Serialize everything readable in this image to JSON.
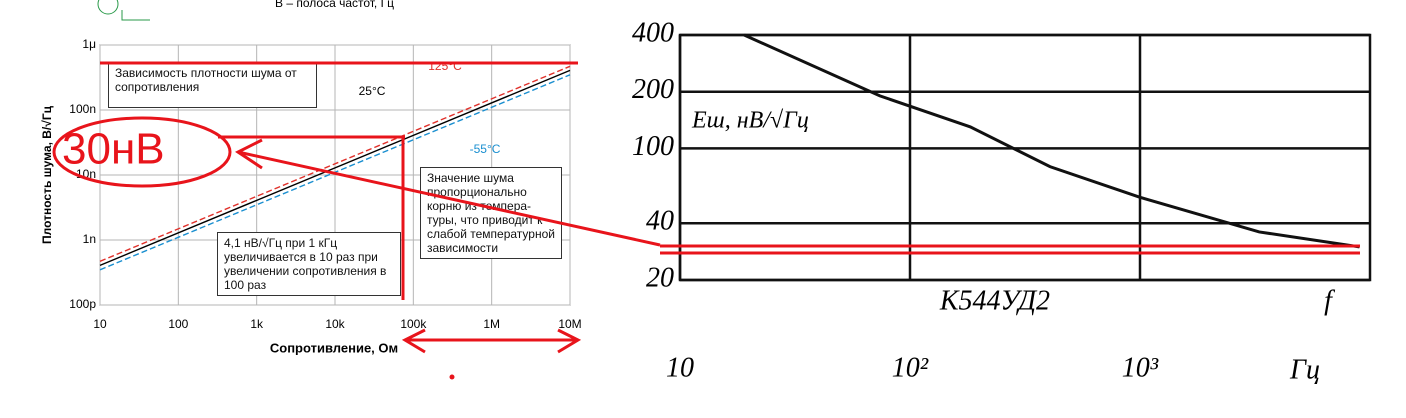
{
  "header_note": "B – полоса частот, Гц",
  "red_note": "30нВ",
  "chart_data": [
    {
      "type": "line",
      "title": "Зависимость плотности шума от сопротивления",
      "x_label": "Сопротивление, Ом",
      "y_label": "Плотность шума, В/√Гц",
      "xscale": "log",
      "yscale": "log",
      "grid": true,
      "xlim": [
        10,
        10000000
      ],
      "xticks": [
        10,
        100,
        {
          "value": 1000,
          "label": "1k"
        },
        {
          "value": 10000,
          "label": "10k"
        },
        {
          "value": 100000,
          "label": "100k"
        },
        {
          "value": 1000000,
          "label": "1M"
        },
        {
          "value": 10000000,
          "label": "10M"
        }
      ],
      "ylim": [
        1e-10,
        1e-06
      ],
      "yticks": [
        {
          "value": 1e-10,
          "label": "100p"
        },
        {
          "value": 1e-09,
          "label": "1n"
        },
        {
          "value": 1e-08,
          "label": "10n"
        },
        {
          "value": 1e-07,
          "label": "100n"
        },
        {
          "value": 1e-06,
          "label": "1μ"
        }
      ],
      "x": [
        10,
        10000000
      ],
      "series": [
        {
          "name": "125°C",
          "color": "#e0312b",
          "dash": true,
          "values": [
            4.7e-10,
            4.7e-07
          ]
        },
        {
          "name": "25°C",
          "color": "#000000",
          "dash": false,
          "values": [
            4.07e-10,
            4.07e-07
          ]
        },
        {
          "name": "-55°C",
          "color": "#1a8fd0",
          "dash": true,
          "values": [
            3.48e-10,
            3.48e-07
          ]
        }
      ],
      "annotations": [
        "Значение шума пропорционально корню из темпера-туры, что приводит к слабой температурной зависимости",
        "4,1 нВ/√Гц при 1 кГц увеличивается в 10 раз при увеличении сопротивления в 100 раз"
      ]
    },
    {
      "type": "line",
      "x_label": "Гц",
      "y_label": "Eш, нВ/√Гц",
      "xscale": "log",
      "yscale": "log",
      "grid": true,
      "xlim": [
        10,
        10000
      ],
      "xticks": [
        10,
        {
          "value": 100,
          "label": "10²"
        },
        {
          "value": 1000,
          "label": "10³"
        }
      ],
      "ylim": [
        20,
        400
      ],
      "yticks": [
        20,
        40,
        100,
        200,
        400
      ],
      "x": [
        19,
        74,
        183,
        406,
        1000,
        3300,
        9000
      ],
      "series": [
        {
          "color": "#111111",
          "dash": false,
          "values": [
            400,
            190,
            130,
            80,
            55,
            36,
            30
          ]
        }
      ],
      "annotations": [
        "К544УД2",
        "f"
      ]
    }
  ]
}
